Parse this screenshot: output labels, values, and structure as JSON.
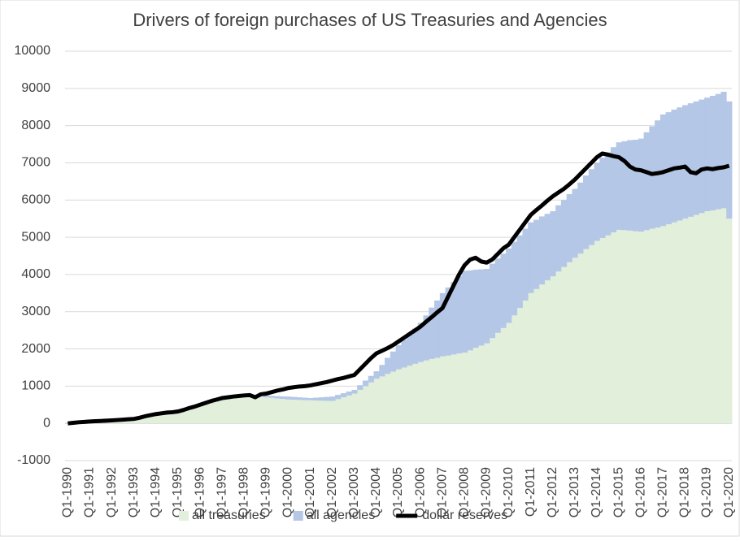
{
  "chart_data": {
    "type": "stacked_bar_line",
    "title": "Drivers of foreign purchases of US Treasuries and Agencies",
    "categories": [
      "Q1-1990",
      null,
      null,
      null,
      "Q1-1991",
      null,
      null,
      null,
      "Q1-1992",
      null,
      null,
      null,
      "Q1-1993",
      null,
      null,
      null,
      "Q1-1994",
      null,
      null,
      null,
      "Q1-1995",
      null,
      null,
      null,
      "Q1-1996",
      null,
      null,
      null,
      "Q1-1997",
      null,
      null,
      null,
      "Q1-1998",
      null,
      null,
      null,
      "Q1-1999",
      null,
      null,
      null,
      "Q1-2000",
      null,
      null,
      null,
      "Q1-2001",
      null,
      null,
      null,
      "Q1-2002",
      null,
      null,
      null,
      "Q1-2003",
      null,
      null,
      null,
      "Q1-2004",
      null,
      null,
      null,
      "Q1-2005",
      null,
      null,
      null,
      "Q1-2006",
      null,
      null,
      null,
      "Q1-2007",
      null,
      null,
      null,
      "Q1-2008",
      null,
      null,
      null,
      "Q1-2009",
      null,
      null,
      null,
      "Q1-2010",
      null,
      null,
      null,
      "Q1-2011",
      null,
      null,
      null,
      "Q1-2012",
      null,
      null,
      null,
      "Q1-2013",
      null,
      null,
      null,
      "Q1-2014",
      null,
      null,
      null,
      "Q1-2015",
      null,
      null,
      null,
      "Q1-2016",
      null,
      null,
      null,
      "Q1-2017",
      null,
      null,
      null,
      "Q1-2018",
      null,
      null,
      null,
      "Q1-2019",
      null,
      null,
      null,
      "Q1-2020"
    ],
    "series": [
      {
        "name": "all treasuries",
        "kind": "bar",
        "color": "#e2efda",
        "values": [
          0,
          12,
          25,
          38,
          50,
          58,
          65,
          72,
          80,
          90,
          100,
          110,
          120,
          148,
          175,
          202,
          230,
          248,
          265,
          282,
          300,
          340,
          380,
          420,
          460,
          500,
          540,
          580,
          620,
          645,
          670,
          695,
          720,
          715,
          710,
          705,
          700,
          685,
          670,
          655,
          640,
          635,
          630,
          625,
          620,
          615,
          610,
          605,
          600,
          650,
          700,
          750,
          800,
          900,
          1000,
          1100,
          1200,
          1260,
          1330,
          1390,
          1450,
          1500,
          1550,
          1600,
          1650,
          1690,
          1730,
          1760,
          1800,
          1820,
          1850,
          1880,
          1900,
          1960,
          2030,
          2090,
          2150,
          2290,
          2430,
          2560,
          2700,
          2900,
          3100,
          3300,
          3500,
          3610,
          3730,
          3840,
          3950,
          4080,
          4200,
          4330,
          4450,
          4560,
          4680,
          4790,
          4900,
          4980,
          5050,
          5130,
          5200,
          5190,
          5180,
          5160,
          5150,
          5190,
          5230,
          5260,
          5300,
          5350,
          5400,
          5450,
          5500,
          5550,
          5600,
          5650,
          5700,
          5720,
          5750,
          5780,
          5500
        ]
      },
      {
        "name": "all agencies",
        "kind": "bar",
        "color": "#b4c7e7",
        "values": [
          0,
          0,
          0,
          0,
          0,
          0,
          0,
          0,
          0,
          0,
          0,
          0,
          0,
          0,
          0,
          0,
          0,
          0,
          0,
          0,
          0,
          0,
          0,
          0,
          10,
          10,
          10,
          10,
          10,
          10,
          10,
          10,
          10,
          10,
          10,
          10,
          50,
          55,
          60,
          70,
          80,
          75,
          70,
          65,
          60,
          75,
          90,
          105,
          120,
          115,
          110,
          105,
          100,
          125,
          150,
          175,
          200,
          310,
          430,
          540,
          650,
          750,
          850,
          950,
          1050,
          1210,
          1380,
          1540,
          1700,
          1830,
          1950,
          2080,
          2200,
          2150,
          2100,
          2050,
          2000,
          2000,
          2000,
          2000,
          2000,
          1980,
          1950,
          1930,
          1900,
          1860,
          1830,
          1790,
          1750,
          1780,
          1800,
          1830,
          1850,
          1910,
          1980,
          2040,
          2100,
          2160,
          2230,
          2290,
          2350,
          2390,
          2430,
          2460,
          2500,
          2630,
          2750,
          2880,
          3000,
          3010,
          3030,
          3040,
          3050,
          3050,
          3050,
          3050,
          3050,
          3080,
          3100,
          3130,
          3150
        ]
      },
      {
        "name": "dollar reserves",
        "kind": "line",
        "color": "#000000",
        "values": [
          0,
          15,
          30,
          40,
          50,
          58,
          65,
          72,
          80,
          90,
          100,
          110,
          120,
          150,
          190,
          220,
          250,
          270,
          290,
          300,
          320,
          360,
          410,
          450,
          500,
          550,
          600,
          640,
          680,
          700,
          720,
          735,
          750,
          760,
          700,
          780,
          800,
          840,
          880,
          910,
          950,
          970,
          990,
          1000,
          1020,
          1050,
          1080,
          1110,
          1150,
          1190,
          1220,
          1260,
          1300,
          1450,
          1600,
          1750,
          1880,
          1950,
          2020,
          2100,
          2200,
          2300,
          2400,
          2500,
          2600,
          2730,
          2850,
          2980,
          3100,
          3400,
          3700,
          4000,
          4250,
          4400,
          4450,
          4350,
          4320,
          4400,
          4550,
          4700,
          4800,
          5000,
          5200,
          5400,
          5600,
          5730,
          5850,
          5980,
          6100,
          6200,
          6300,
          6420,
          6550,
          6700,
          6850,
          7000,
          7150,
          7250,
          7220,
          7180,
          7150,
          7050,
          6900,
          6820,
          6800,
          6750,
          6700,
          6720,
          6750,
          6800,
          6850,
          6870,
          6900,
          6750,
          6720,
          6820,
          6850,
          6830,
          6860,
          6880,
          6920
        ]
      }
    ],
    "ylim": [
      -1000,
      10000
    ],
    "yticks": [
      -1000,
      0,
      1000,
      2000,
      3000,
      4000,
      5000,
      6000,
      7000,
      8000,
      9000,
      10000
    ],
    "grid": true,
    "legend": "bottom"
  }
}
